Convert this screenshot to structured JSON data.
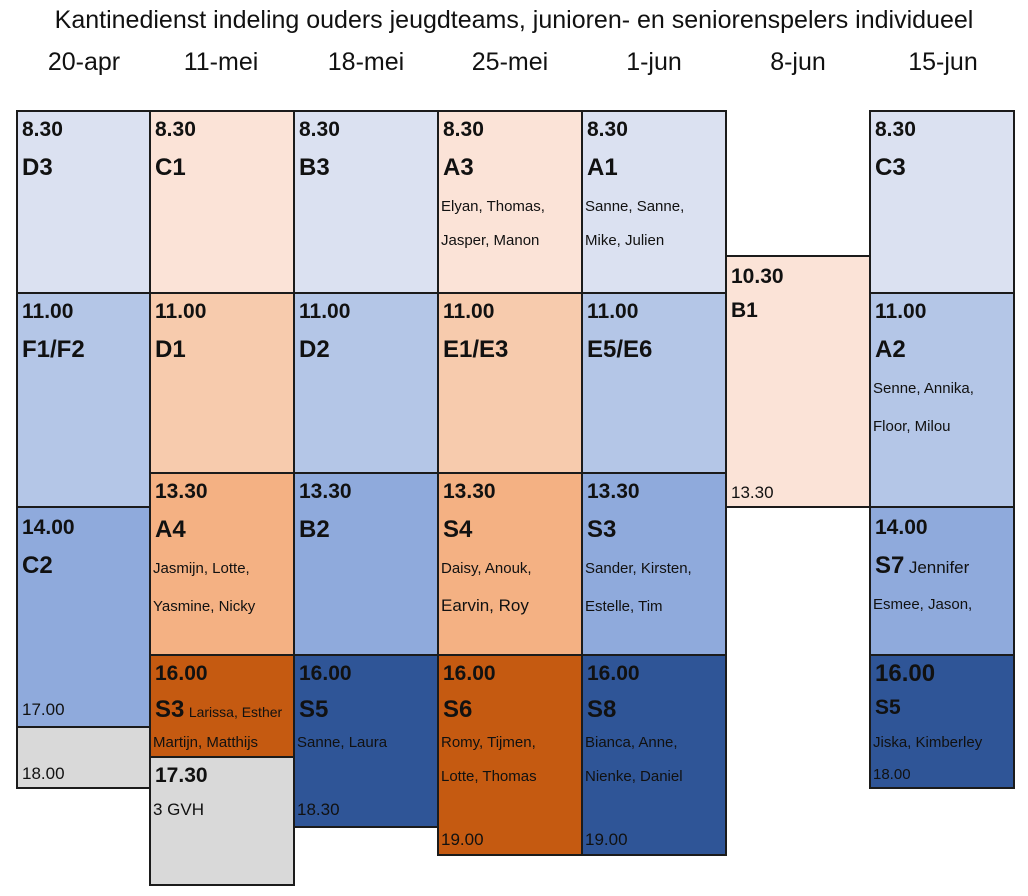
{
  "title": "Kantinedienst indeling ouders jeugdteams, junioren- en seniorenspelers individueel",
  "dates": [
    "20-apr",
    "11-mei",
    "18-mei",
    "25-mei",
    "1-jun",
    "8-jun",
    "15-jun"
  ],
  "colors": {
    "ice_blue": "#dbe1f1",
    "peach": "#fbe3d7",
    "light_blue": "#b4c6e7",
    "salmon": "#f7cbad",
    "mid_blue": "#8faadc",
    "orange": "#f4b183",
    "burnt_orange": "#c55a11",
    "navy": "#2f5597",
    "gray": "#d9d9d9"
  },
  "slots": {
    "apr20_a": {
      "time": "8.30",
      "team": "D3"
    },
    "apr20_b": {
      "time": "11.00",
      "team": "F1/F2"
    },
    "apr20_c": {
      "time": "14.00",
      "team": "C2",
      "end": "17.00"
    },
    "apr20_d": {
      "end": "18.00"
    },
    "mei11_a": {
      "time": "8.30",
      "team": "C1"
    },
    "mei11_b": {
      "time": "11.00",
      "team": "D1"
    },
    "mei11_c": {
      "time": "13.30",
      "team": "A4",
      "names1": "Jasmijn, Lotte,",
      "names2": "Yasmine, Nicky"
    },
    "mei11_d": {
      "time": "16.00",
      "team": "S3",
      "inline": "Larissa, Esther",
      "names2": "Martijn, Matthijs"
    },
    "mei11_e": {
      "time": "17.30",
      "team": "3 GVH"
    },
    "mei18_a": {
      "time": "8.30",
      "team": "B3"
    },
    "mei18_b": {
      "time": "11.00",
      "team": "D2"
    },
    "mei18_c": {
      "time": "13.30",
      "team": "B2"
    },
    "mei18_d": {
      "time": "16.00",
      "team": "S5",
      "names1": "Sanne, Laura",
      "end": "18.30"
    },
    "mei25_a": {
      "time": "8.30",
      "team": "A3",
      "names1": "Elyan, Thomas,",
      "names2": "Jasper, Manon"
    },
    "mei25_b": {
      "time": "11.00",
      "team": "E1/E3"
    },
    "mei25_c": {
      "time": "13.30",
      "team": "S4",
      "names1": "Daisy, Anouk,",
      "names2": "Earvin, Roy"
    },
    "mei25_d": {
      "time": "16.00",
      "team": "S6",
      "names1": "Romy, Tijmen,",
      "names2": "Lotte, Thomas",
      "end": "19.00"
    },
    "jun1_a": {
      "time": "8.30",
      "team": "A1",
      "names1": "Sanne, Sanne,",
      "names2": "Mike, Julien"
    },
    "jun1_b": {
      "time": "11.00",
      "team": "E5/E6"
    },
    "jun1_c": {
      "time": "13.30",
      "team": "S3",
      "names1": "Sander, Kirsten,",
      "names2": "Estelle, Tim"
    },
    "jun1_d": {
      "time": "16.00",
      "team": "S8",
      "names1": "Bianca, Anne,",
      "names2": "Nienke, Daniel",
      "end": "19.00"
    },
    "jun8_a": {
      "time": "10.30",
      "team": "B1",
      "end": "13.30"
    },
    "jun15_a": {
      "time": "8.30",
      "team": "C3"
    },
    "jun15_b": {
      "time": "11.00",
      "team": "A2",
      "names1": "Senne, Annika,",
      "names2": "Floor, Milou"
    },
    "jun15_c": {
      "time": "14.00",
      "team": "S7",
      "inline": "Jennifer",
      "names2": "Esmee, Jason,"
    },
    "jun15_d": {
      "time": "16.00",
      "team": "S5",
      "names1": "Jiska, Kimberley",
      "end": "18.00"
    }
  }
}
